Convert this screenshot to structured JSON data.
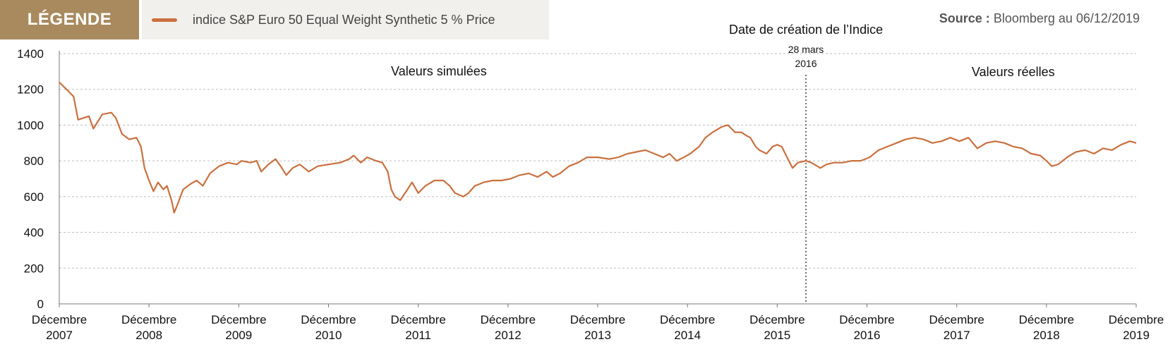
{
  "legend": {
    "title": "LÉGENDE",
    "series_label": "indice S&P Euro 50 Equal Weight Synthetic 5 % Price"
  },
  "source": {
    "label": "Source :",
    "text": "Bloomberg au 06/12/2019"
  },
  "colors": {
    "line": "#c9703f",
    "legend_bg": "#a88a5e",
    "legend_panel_bg": "#f2f0ec",
    "grid": "#bdbdbd"
  },
  "annotations": {
    "creation_title": "Date de création de l’Indice",
    "creation_date_line1": "28 mars",
    "creation_date_line2": "2016",
    "simulated": "Valeurs simulées",
    "real": "Valeurs réelles"
  },
  "chart_data": {
    "type": "line",
    "title": "",
    "xlabel": "",
    "ylabel": "",
    "ylim": [
      0,
      1400
    ],
    "yticks": [
      0,
      200,
      400,
      600,
      800,
      1000,
      1200,
      1400
    ],
    "grid": "horizontal dashed",
    "xlim": [
      2007.92,
      2019.92
    ],
    "xticks": [
      {
        "x": 2007.92,
        "line1": "Décembre",
        "line2": "2007"
      },
      {
        "x": 2008.92,
        "line1": "Décembre",
        "line2": "2008"
      },
      {
        "x": 2009.92,
        "line1": "Décembre",
        "line2": "2009"
      },
      {
        "x": 2010.92,
        "line1": "Décembre",
        "line2": "2010"
      },
      {
        "x": 2011.92,
        "line1": "Décembre",
        "line2": "2011"
      },
      {
        "x": 2012.92,
        "line1": "Décembre",
        "line2": "2012"
      },
      {
        "x": 2013.92,
        "line1": "Décembre",
        "line2": "2013"
      },
      {
        "x": 2014.92,
        "line1": "Décembre",
        "line2": "2014"
      },
      {
        "x": 2015.92,
        "line1": "Décembre",
        "line2": "2015"
      },
      {
        "x": 2016.92,
        "line1": "Décembre",
        "line2": "2016"
      },
      {
        "x": 2017.92,
        "line1": "Décembre",
        "line2": "2017"
      },
      {
        "x": 2018.92,
        "line1": "Décembre",
        "line2": "2018"
      },
      {
        "x": 2019.92,
        "line1": "Décembre",
        "line2": "2019"
      }
    ],
    "marker_x": 2016.24,
    "series": [
      {
        "name": "indice S&P Euro 50 Equal Weight Synthetic 5 % Price",
        "points": [
          [
            2007.92,
            1240
          ],
          [
            2008.0,
            1200
          ],
          [
            2008.08,
            1160
          ],
          [
            2008.13,
            1030
          ],
          [
            2008.25,
            1050
          ],
          [
            2008.3,
            980
          ],
          [
            2008.4,
            1060
          ],
          [
            2008.5,
            1070
          ],
          [
            2008.55,
            1040
          ],
          [
            2008.62,
            950
          ],
          [
            2008.7,
            920
          ],
          [
            2008.78,
            930
          ],
          [
            2008.83,
            880
          ],
          [
            2008.87,
            760
          ],
          [
            2008.92,
            690
          ],
          [
            2008.97,
            630
          ],
          [
            2009.02,
            680
          ],
          [
            2009.08,
            640
          ],
          [
            2009.12,
            660
          ],
          [
            2009.17,
            580
          ],
          [
            2009.2,
            510
          ],
          [
            2009.24,
            560
          ],
          [
            2009.3,
            640
          ],
          [
            2009.38,
            670
          ],
          [
            2009.45,
            690
          ],
          [
            2009.52,
            660
          ],
          [
            2009.6,
            730
          ],
          [
            2009.7,
            770
          ],
          [
            2009.8,
            790
          ],
          [
            2009.9,
            780
          ],
          [
            2009.95,
            800
          ],
          [
            2010.05,
            790
          ],
          [
            2010.12,
            800
          ],
          [
            2010.17,
            740
          ],
          [
            2010.25,
            780
          ],
          [
            2010.33,
            810
          ],
          [
            2010.4,
            760
          ],
          [
            2010.45,
            720
          ],
          [
            2010.52,
            760
          ],
          [
            2010.6,
            780
          ],
          [
            2010.7,
            740
          ],
          [
            2010.8,
            770
          ],
          [
            2010.92,
            780
          ],
          [
            2011.05,
            790
          ],
          [
            2011.15,
            810
          ],
          [
            2011.2,
            830
          ],
          [
            2011.28,
            790
          ],
          [
            2011.35,
            820
          ],
          [
            2011.45,
            800
          ],
          [
            2011.52,
            790
          ],
          [
            2011.58,
            740
          ],
          [
            2011.62,
            640
          ],
          [
            2011.66,
            600
          ],
          [
            2011.72,
            580
          ],
          [
            2011.8,
            640
          ],
          [
            2011.85,
            680
          ],
          [
            2011.92,
            620
          ],
          [
            2012.0,
            660
          ],
          [
            2012.1,
            690
          ],
          [
            2012.2,
            690
          ],
          [
            2012.27,
            660
          ],
          [
            2012.33,
            620
          ],
          [
            2012.42,
            600
          ],
          [
            2012.48,
            620
          ],
          [
            2012.55,
            660
          ],
          [
            2012.65,
            680
          ],
          [
            2012.75,
            690
          ],
          [
            2012.85,
            690
          ],
          [
            2012.95,
            700
          ],
          [
            2013.05,
            720
          ],
          [
            2013.15,
            730
          ],
          [
            2013.25,
            710
          ],
          [
            2013.35,
            740
          ],
          [
            2013.42,
            710
          ],
          [
            2013.5,
            730
          ],
          [
            2013.6,
            770
          ],
          [
            2013.7,
            790
          ],
          [
            2013.8,
            820
          ],
          [
            2013.92,
            820
          ],
          [
            2014.05,
            810
          ],
          [
            2014.15,
            820
          ],
          [
            2014.25,
            840
          ],
          [
            2014.35,
            850
          ],
          [
            2014.45,
            860
          ],
          [
            2014.55,
            840
          ],
          [
            2014.65,
            820
          ],
          [
            2014.72,
            840
          ],
          [
            2014.8,
            800
          ],
          [
            2014.88,
            820
          ],
          [
            2014.95,
            840
          ],
          [
            2015.05,
            880
          ],
          [
            2015.12,
            930
          ],
          [
            2015.2,
            960
          ],
          [
            2015.3,
            990
          ],
          [
            2015.37,
            1000
          ],
          [
            2015.45,
            960
          ],
          [
            2015.52,
            960
          ],
          [
            2015.58,
            940
          ],
          [
            2015.62,
            930
          ],
          [
            2015.68,
            880
          ],
          [
            2015.72,
            860
          ],
          [
            2015.8,
            840
          ],
          [
            2015.87,
            880
          ],
          [
            2015.92,
            890
          ],
          [
            2015.97,
            880
          ],
          [
            2016.03,
            820
          ],
          [
            2016.09,
            760
          ],
          [
            2016.15,
            790
          ],
          [
            2016.24,
            800
          ],
          [
            2016.3,
            790
          ],
          [
            2016.4,
            760
          ],
          [
            2016.47,
            780
          ],
          [
            2016.55,
            790
          ],
          [
            2016.65,
            790
          ],
          [
            2016.75,
            800
          ],
          [
            2016.85,
            800
          ],
          [
            2016.95,
            820
          ],
          [
            2017.05,
            860
          ],
          [
            2017.15,
            880
          ],
          [
            2017.25,
            900
          ],
          [
            2017.35,
            920
          ],
          [
            2017.45,
            930
          ],
          [
            2017.55,
            920
          ],
          [
            2017.65,
            900
          ],
          [
            2017.75,
            910
          ],
          [
            2017.85,
            930
          ],
          [
            2017.95,
            910
          ],
          [
            2018.05,
            930
          ],
          [
            2018.15,
            870
          ],
          [
            2018.25,
            900
          ],
          [
            2018.35,
            910
          ],
          [
            2018.45,
            900
          ],
          [
            2018.55,
            880
          ],
          [
            2018.65,
            870
          ],
          [
            2018.75,
            840
          ],
          [
            2018.85,
            830
          ],
          [
            2018.92,
            800
          ],
          [
            2018.98,
            770
          ],
          [
            2019.05,
            780
          ],
          [
            2019.15,
            820
          ],
          [
            2019.25,
            850
          ],
          [
            2019.35,
            860
          ],
          [
            2019.45,
            840
          ],
          [
            2019.55,
            870
          ],
          [
            2019.65,
            860
          ],
          [
            2019.75,
            890
          ],
          [
            2019.85,
            910
          ],
          [
            2019.92,
            900
          ]
        ]
      }
    ]
  }
}
